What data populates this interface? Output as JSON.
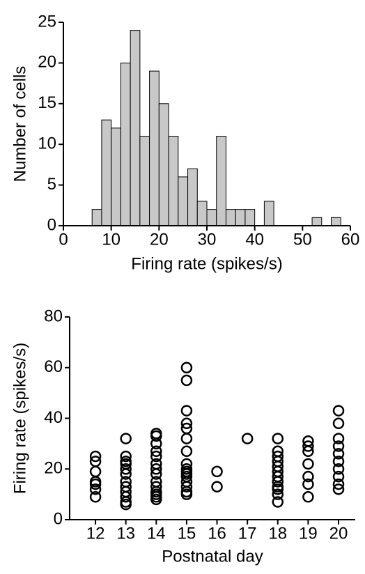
{
  "chart_data": [
    {
      "type": "histogram",
      "xlabel": "Firing rate (spikes/s)",
      "ylabel": "Number of cells",
      "bins": [
        6,
        8,
        10,
        12,
        14,
        16,
        18,
        20,
        22,
        24,
        26,
        28,
        30,
        32,
        34,
        36,
        38,
        40,
        42,
        44,
        46,
        48,
        50,
        52,
        54,
        56,
        58,
        60
      ],
      "values": [
        2,
        13,
        12,
        20,
        24,
        11,
        19,
        15,
        11,
        6,
        7,
        3,
        2,
        11,
        2,
        2,
        2,
        0,
        3,
        0,
        0,
        0,
        0,
        1,
        0,
        1,
        0
      ],
      "color": "#c8c8c8",
      "xlim": [
        0,
        60
      ],
      "xticks": [
        0,
        10,
        20,
        30,
        40,
        50,
        60
      ],
      "ylim": [
        0,
        25
      ],
      "yticks": [
        0,
        5,
        10,
        15,
        20,
        25
      ]
    },
    {
      "type": "scatter",
      "xlabel": "Postnatal day",
      "ylabel": "Firing rate (spikes/s)",
      "x": [
        12,
        12,
        12,
        12,
        12,
        12,
        12,
        13,
        13,
        13,
        13,
        13,
        13,
        13,
        13,
        13,
        13,
        13,
        13,
        14,
        14,
        14,
        14,
        14,
        14,
        14,
        14,
        14,
        14,
        14,
        14,
        14,
        14,
        15,
        15,
        15,
        15,
        15,
        15,
        15,
        15,
        15,
        15,
        15,
        15,
        15,
        15,
        15,
        15,
        16,
        16,
        17,
        18,
        18,
        18,
        18,
        18,
        18,
        18,
        18,
        18,
        18,
        18,
        18,
        19,
        19,
        19,
        19,
        19,
        19,
        19,
        20,
        20,
        20,
        20,
        20,
        20,
        20,
        20,
        20,
        20
      ],
      "values": [
        9,
        12,
        14,
        15,
        19,
        23,
        25,
        6,
        7,
        9,
        11,
        13,
        15,
        18,
        20,
        22,
        23,
        25,
        32,
        8,
        9,
        10,
        11,
        13,
        15,
        18,
        20,
        22,
        25,
        27,
        30,
        33,
        34,
        10,
        11,
        13,
        15,
        17,
        18,
        19,
        20,
        22,
        27,
        32,
        36,
        38,
        43,
        55,
        60,
        13,
        19,
        32,
        7,
        10,
        12,
        13,
        15,
        17,
        19,
        21,
        23,
        25,
        27,
        32,
        9,
        14,
        17,
        22,
        27,
        29,
        31,
        12,
        14,
        17,
        20,
        23,
        26,
        29,
        32,
        38,
        43
      ],
      "color": "#000000",
      "xlim": [
        11.15,
        20.55
      ],
      "xticks": [
        12,
        13,
        14,
        15,
        16,
        17,
        18,
        19,
        20
      ],
      "ylim": [
        0,
        80
      ],
      "yticks": [
        0,
        20,
        40,
        60,
        80
      ]
    }
  ]
}
